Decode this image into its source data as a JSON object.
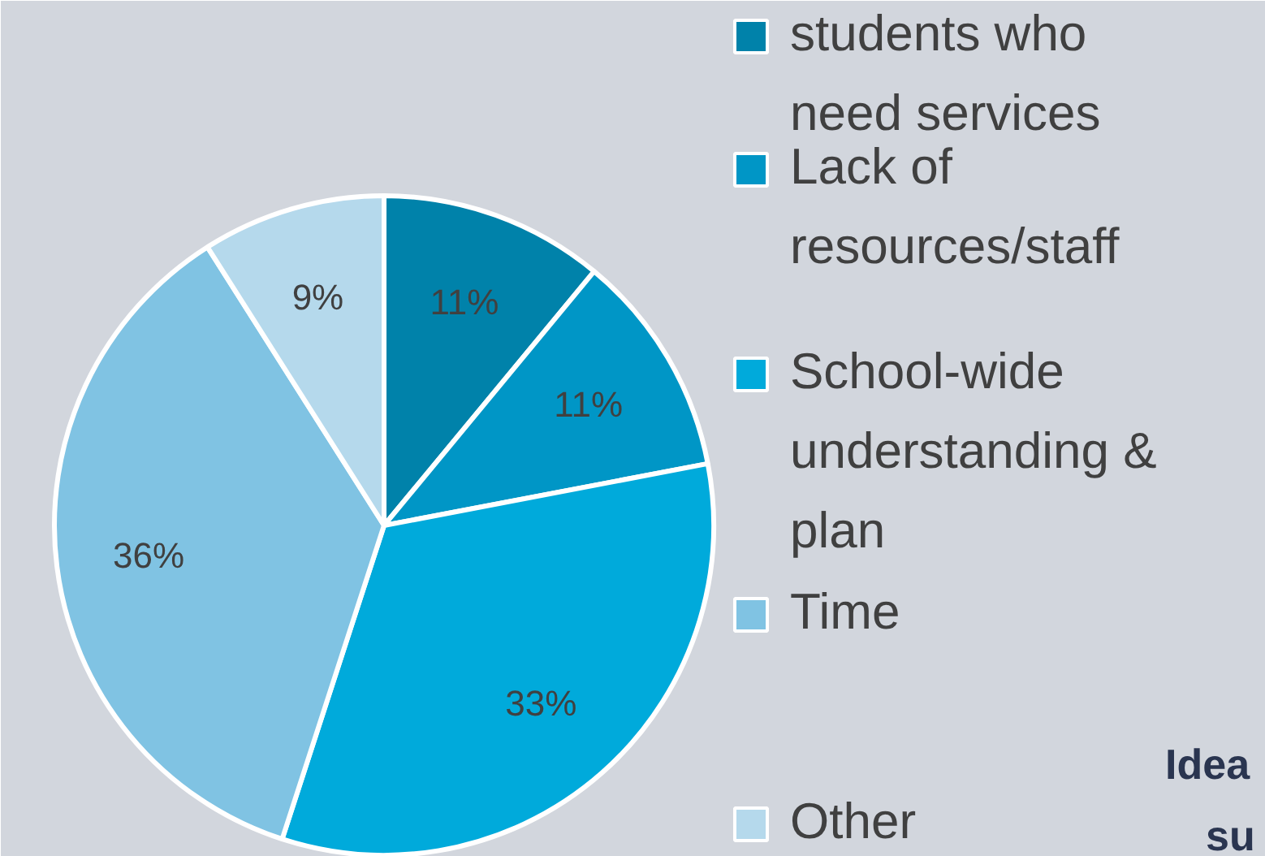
{
  "chart_data": {
    "type": "pie",
    "categories": [
      "students who need services",
      "Lack of resources/staff",
      "School-wide understanding & plan",
      "Time",
      "Other"
    ],
    "values": [
      11,
      11,
      33,
      36,
      9
    ],
    "colors": [
      "#0082aa",
      "#0096c6",
      "#00aadb",
      "#80c3e3",
      "#b5d9ec"
    ],
    "value_labels": [
      "11%",
      "11%",
      "33%",
      "36%",
      "9%"
    ],
    "legend": "right",
    "annotations": [
      "Idea",
      "su"
    ]
  }
}
